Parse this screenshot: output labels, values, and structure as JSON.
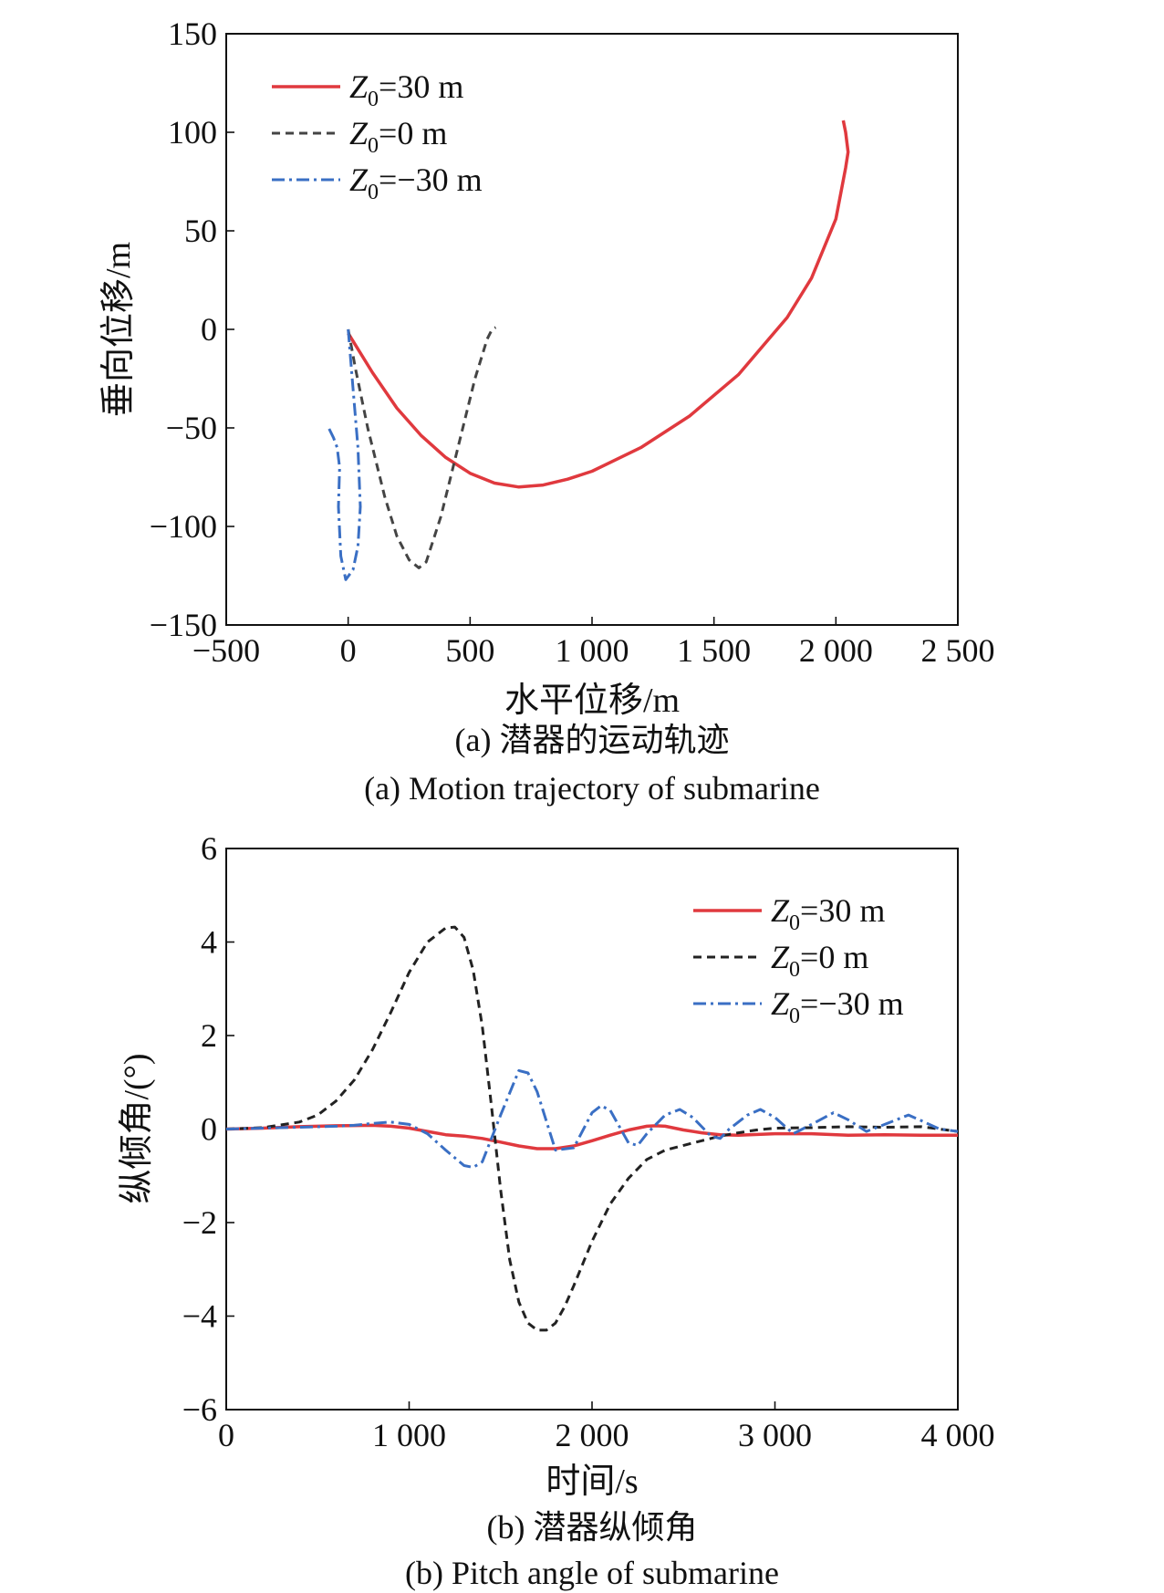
{
  "chart_data": [
    {
      "type": "line",
      "xlabel": "水平位移/m",
      "ylabel": "垂向位移/m",
      "xlim": [
        -500,
        2500
      ],
      "ylim": [
        -150,
        150
      ],
      "x_ticks": [
        -500,
        0,
        500,
        1000,
        1500,
        2000,
        2500
      ],
      "x_tick_labels": [
        "−500",
        "0",
        "500",
        "1 000",
        "1 500",
        "2 000",
        "2 500"
      ],
      "y_ticks": [
        -150,
        -100,
        -50,
        0,
        50,
        100,
        150
      ],
      "y_tick_labels": [
        "−150",
        "−100",
        "−50",
        "0",
        "50",
        "100",
        "150"
      ],
      "caption_cn": "(a) 潜器的运动轨迹",
      "caption_en": "(a) Motion trajectory of submarine",
      "legend_position": "top-left",
      "series": [
        {
          "name": "Z0=30 m",
          "label_main": "Z",
          "label_sub": "0",
          "label_rest": "=30 m",
          "color": "#e0393e",
          "style": "solid",
          "x": [
            0,
            100,
            200,
            300,
            400,
            500,
            600,
            700,
            800,
            900,
            1000,
            1200,
            1400,
            1600,
            1800,
            1900,
            2000,
            2040,
            2050,
            2040,
            2030
          ],
          "y": [
            -2,
            -22,
            -40,
            -54,
            -65,
            -73,
            -78,
            -80,
            -79,
            -76,
            -72,
            -60,
            -44,
            -23,
            6,
            26,
            56,
            82,
            90,
            100,
            106
          ]
        },
        {
          "name": "Z0=0 m",
          "label_main": "Z",
          "label_sub": "0",
          "label_rest": "=0 m",
          "color": "#444444",
          "style": "dashed",
          "x": [
            0,
            30,
            80,
            150,
            200,
            250,
            290,
            320,
            380,
            450,
            520,
            570,
            590,
            605
          ],
          "y": [
            0,
            -20,
            -50,
            -85,
            -105,
            -117,
            -121,
            -118,
            -95,
            -60,
            -25,
            -5,
            0,
            1
          ]
        },
        {
          "name": "Z0=−30 m",
          "label_main": "Z",
          "label_sub": "0",
          "label_rest": "=−30 m",
          "color": "#3a6fc4",
          "style": "dashdot",
          "x": [
            0,
            20,
            40,
            50,
            40,
            20,
            -10,
            -30,
            -40,
            -35,
            -45,
            -60,
            -80
          ],
          "y": [
            0,
            -30,
            -60,
            -90,
            -110,
            -122,
            -127,
            -115,
            -90,
            -70,
            -60,
            -55,
            -50
          ]
        }
      ]
    },
    {
      "type": "line",
      "xlabel": "时间/s",
      "ylabel": "纵倾角/(°)",
      "xlim": [
        0,
        4000
      ],
      "ylim": [
        -6,
        6
      ],
      "x_ticks": [
        0,
        1000,
        2000,
        3000,
        4000
      ],
      "x_tick_labels": [
        "0",
        "1 000",
        "2 000",
        "3 000",
        "4 000"
      ],
      "y_ticks": [
        -6,
        -4,
        -2,
        0,
        2,
        4,
        6
      ],
      "y_tick_labels": [
        "−6",
        "−4",
        "−2",
        "0",
        "2",
        "4",
        "6"
      ],
      "caption_cn": "(b) 潜器纵倾角",
      "caption_en": "(b) Pitch angle of submarine",
      "legend_position": "top-right",
      "series": [
        {
          "name": "Z0=30 m",
          "label_main": "Z",
          "label_sub": "0",
          "label_rest": "=30 m",
          "color": "#e0393e",
          "style": "solid",
          "x": [
            0,
            200,
            400,
            600,
            800,
            900,
            1000,
            1100,
            1200,
            1300,
            1400,
            1500,
            1600,
            1700,
            1800,
            1900,
            2000,
            2100,
            2200,
            2300,
            2350,
            2400,
            2500,
            2600,
            2700,
            2800,
            3000,
            3200,
            3400,
            3600,
            3800,
            4000
          ],
          "y": [
            0,
            0.02,
            0.05,
            0.07,
            0.08,
            0.06,
            0.02,
            -0.05,
            -0.12,
            -0.15,
            -0.2,
            -0.28,
            -0.36,
            -0.42,
            -0.42,
            -0.36,
            -0.25,
            -0.13,
            -0.02,
            0.06,
            0.07,
            0.06,
            -0.02,
            -0.08,
            -0.12,
            -0.13,
            -0.1,
            -0.1,
            -0.13,
            -0.12,
            -0.13,
            -0.13
          ]
        },
        {
          "name": "Z0=0 m",
          "label_main": "Z",
          "label_sub": "0",
          "label_rest": "=0 m",
          "color": "#222222",
          "style": "dashed",
          "x": [
            0,
            200,
            400,
            500,
            600,
            700,
            800,
            900,
            1000,
            1100,
            1200,
            1250,
            1300,
            1350,
            1400,
            1450,
            1500,
            1550,
            1600,
            1650,
            1700,
            1750,
            1800,
            1850,
            1900,
            2000,
            2100,
            2200,
            2300,
            2400,
            2500,
            2600,
            2700,
            2800,
            2900,
            3000,
            3200,
            3400,
            3600,
            3800,
            4000
          ],
          "y": [
            0,
            0.03,
            0.15,
            0.3,
            0.6,
            1.05,
            1.7,
            2.5,
            3.35,
            4.0,
            4.3,
            4.32,
            4.1,
            3.4,
            2.2,
            0.5,
            -1.3,
            -2.8,
            -3.7,
            -4.15,
            -4.3,
            -4.3,
            -4.15,
            -3.8,
            -3.35,
            -2.4,
            -1.6,
            -1.05,
            -0.65,
            -0.45,
            -0.35,
            -0.25,
            -0.15,
            -0.08,
            -0.02,
            0.02,
            0.03,
            0.05,
            0.04,
            0.05,
            -0.05
          ]
        },
        {
          "name": "Z0=−30 m",
          "label_main": "Z",
          "label_sub": "0",
          "label_rest": "=−30 m",
          "color": "#3a6fc4",
          "style": "dashdot",
          "x": [
            0,
            200,
            400,
            600,
            700,
            800,
            900,
            1000,
            1100,
            1200,
            1300,
            1350,
            1400,
            1500,
            1600,
            1650,
            1700,
            1800,
            1900,
            2000,
            2050,
            2100,
            2200,
            2250,
            2300,
            2400,
            2480,
            2550,
            2650,
            2700,
            2750,
            2850,
            2920,
            3000,
            3100,
            3200,
            3320,
            3400,
            3500,
            3600,
            3730,
            3800,
            3900,
            4000
          ],
          "y": [
            0,
            0.02,
            0.04,
            0.06,
            0.08,
            0.12,
            0.15,
            0.1,
            -0.1,
            -0.45,
            -0.78,
            -0.82,
            -0.7,
            0.3,
            1.25,
            1.2,
            0.8,
            -0.45,
            -0.4,
            0.35,
            0.5,
            0.4,
            -0.3,
            -0.35,
            -0.1,
            0.3,
            0.42,
            0.25,
            -0.15,
            -0.2,
            0.0,
            0.3,
            0.42,
            0.25,
            -0.1,
            0.1,
            0.35,
            0.2,
            -0.05,
            0.1,
            0.3,
            0.18,
            0.0,
            -0.05
          ]
        }
      ]
    }
  ]
}
